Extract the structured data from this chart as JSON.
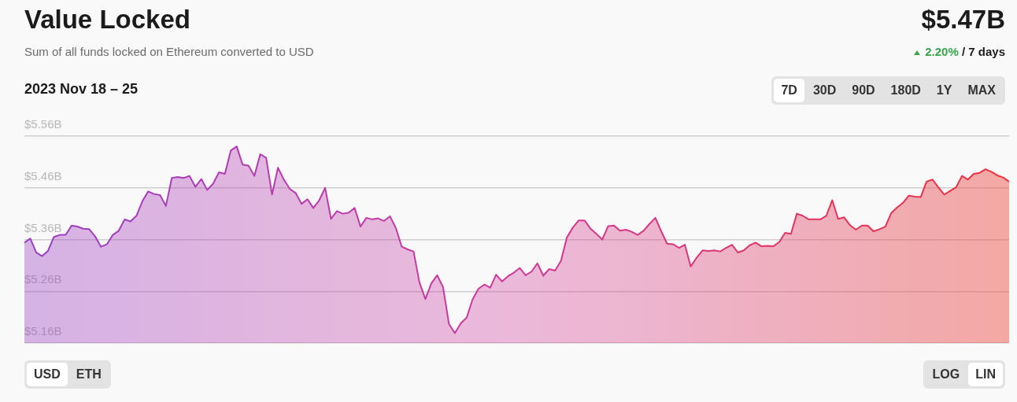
{
  "chart_data": {
    "type": "area",
    "title": "Value Locked",
    "subtitle": "Sum of all funds locked on Ethereum converted to USD",
    "annotations": [
      "$5.47B",
      "2.20%",
      "/ 7 days",
      "2023 Nov 18 – 25",
      "7D",
      "30D",
      "90D",
      "180D",
      "1Y",
      "MAX",
      "USD",
      "ETH",
      "LOG",
      "LIN"
    ],
    "categories": [
      null,
      null,
      null,
      null,
      null,
      null,
      null,
      null,
      null,
      null,
      null,
      null,
      null,
      null,
      null,
      null,
      null,
      null,
      null,
      null,
      null,
      null,
      null,
      null,
      null,
      null,
      null,
      null,
      null,
      null,
      null,
      null,
      null,
      null,
      null,
      null,
      null,
      null,
      null,
      null,
      null,
      null,
      null,
      null,
      null,
      null,
      null,
      null,
      null,
      null,
      null,
      null,
      null,
      null,
      null,
      null,
      null,
      null,
      null,
      null,
      null,
      null,
      null,
      null,
      null,
      null,
      null,
      null,
      null,
      null,
      null,
      null,
      null,
      null,
      null,
      null,
      null,
      null,
      null,
      null,
      null,
      null,
      null,
      null,
      null,
      null,
      null,
      null,
      null,
      null,
      null,
      null,
      null,
      null,
      null,
      null,
      null,
      null,
      null,
      null,
      null,
      null,
      null,
      null,
      null,
      null,
      null,
      null,
      null,
      null,
      null,
      null,
      null,
      null,
      null,
      null,
      null,
      null,
      null,
      null,
      null,
      null,
      null,
      null,
      null,
      null,
      null,
      null,
      null,
      null,
      null,
      null,
      null,
      null,
      null,
      null,
      null,
      null,
      null,
      null,
      null,
      null,
      null,
      null,
      null,
      null,
      null,
      null,
      null,
      null,
      null,
      null,
      null,
      null,
      null,
      null,
      null,
      null,
      null,
      null,
      null,
      null,
      null,
      null,
      null,
      null,
      null,
      null
    ],
    "series": [
      {
        "color": "#d0389a",
        "values": [
          5.354,
          5.362,
          5.335,
          5.328,
          5.338,
          5.365,
          5.369,
          5.369,
          5.387,
          5.385,
          5.381,
          5.38,
          5.366,
          5.346,
          5.351,
          5.369,
          5.377,
          5.399,
          5.395,
          5.406,
          5.434,
          5.453,
          5.448,
          5.446,
          5.425,
          5.479,
          5.481,
          5.479,
          5.483,
          5.462,
          5.477,
          5.456,
          5.468,
          5.49,
          5.487,
          5.532,
          5.54,
          5.505,
          5.503,
          5.483,
          5.525,
          5.518,
          5.447,
          5.499,
          5.476,
          5.458,
          5.45,
          5.429,
          5.438,
          5.421,
          5.436,
          5.46,
          5.4,
          5.415,
          5.41,
          5.412,
          5.421,
          5.385,
          5.402,
          5.399,
          5.401,
          5.396,
          5.405,
          5.382,
          5.346,
          5.341,
          5.337,
          5.277,
          5.245,
          5.275,
          5.291,
          5.268,
          5.197,
          5.179,
          5.198,
          5.209,
          5.244,
          5.265,
          5.273,
          5.267,
          5.292,
          5.279,
          5.289,
          5.296,
          5.305,
          5.291,
          5.298,
          5.314,
          5.29,
          5.303,
          5.3,
          5.319,
          5.364,
          5.383,
          5.397,
          5.397,
          5.381,
          5.371,
          5.36,
          5.386,
          5.387,
          5.377,
          5.379,
          5.375,
          5.369,
          5.377,
          5.39,
          5.402,
          5.376,
          5.352,
          5.351,
          5.344,
          5.35,
          5.308,
          5.325,
          5.339,
          5.338,
          5.339,
          5.337,
          5.344,
          5.35,
          5.335,
          5.339,
          5.349,
          5.354,
          5.347,
          5.348,
          5.347,
          5.355,
          5.373,
          5.371,
          5.41,
          5.406,
          5.399,
          5.399,
          5.399,
          5.406,
          5.436,
          5.4,
          5.403,
          5.388,
          5.379,
          5.387,
          5.387,
          5.376,
          5.38,
          5.385,
          5.411,
          5.422,
          5.431,
          5.445,
          5.443,
          5.442,
          5.472,
          5.476,
          5.461,
          5.447,
          5.454,
          5.461,
          5.483,
          5.476,
          5.487,
          5.489,
          5.496,
          5.491,
          5.484,
          5.48,
          5.472
        ]
      }
    ],
    "ylim": [
      5.16,
      5.56
    ],
    "yticks": [
      {
        "value": 5.16,
        "label": "$5.16B"
      },
      {
        "value": 5.26,
        "label": "$5.26B"
      },
      {
        "value": 5.36,
        "label": "$5.36B"
      },
      {
        "value": 5.46,
        "label": "$5.46B"
      },
      {
        "value": 5.56,
        "label": "$5.56B"
      }
    ],
    "grid": "y",
    "legend": false,
    "marker": "none",
    "line_style": "solid"
  }
}
